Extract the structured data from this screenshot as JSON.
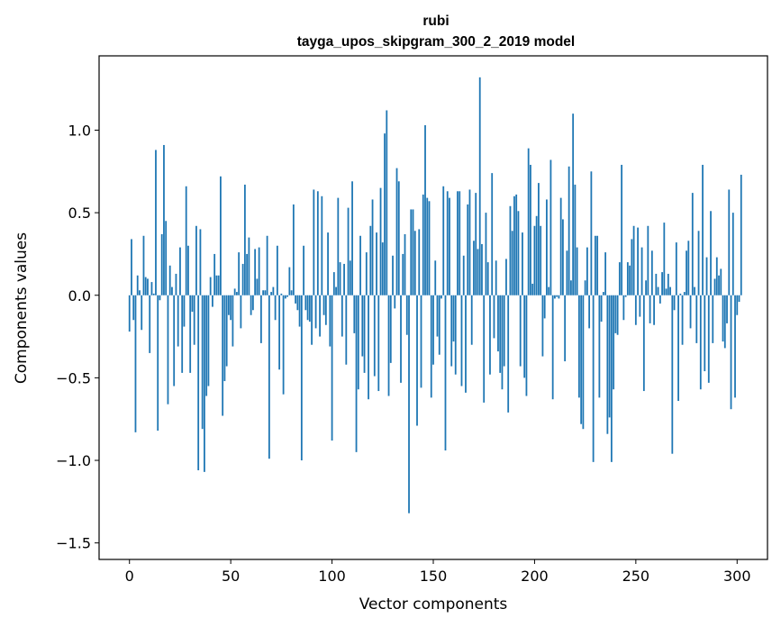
{
  "chart_data": {
    "type": "bar",
    "title_line1": "rubi",
    "title_line2": "tayga_upos_skipgram_300_2_2019 model",
    "xlabel": "Vector components",
    "ylabel": "Components values",
    "xlim": [
      -15,
      315
    ],
    "ylim": [
      -1.6,
      1.45
    ],
    "x_ticks": [
      0,
      50,
      100,
      150,
      200,
      250,
      300
    ],
    "x_tick_labels": [
      "0",
      "50",
      "100",
      "150",
      "200",
      "250",
      "300"
    ],
    "y_ticks": [
      -1.5,
      -1.0,
      -0.5,
      0.0,
      0.5,
      1.0
    ],
    "y_tick_labels": [
      "−1.5",
      "−1.0",
      "−0.5",
      "0.0",
      "0.5",
      "1.0"
    ],
    "bar_color": "#1f77b4",
    "values": [
      -0.22,
      0.34,
      -0.15,
      -0.83,
      0.12,
      0.03,
      -0.21,
      0.36,
      0.11,
      0.1,
      -0.35,
      0.08,
      0.01,
      0.88,
      -0.82,
      -0.03,
      0.37,
      0.91,
      0.45,
      -0.66,
      0.18,
      0.05,
      -0.55,
      0.13,
      -0.31,
      0.29,
      -0.47,
      -0.19,
      0.66,
      0.3,
      -0.47,
      -0.1,
      -0.3,
      0.42,
      -1.06,
      0.4,
      -0.81,
      -1.07,
      -0.61,
      -0.55,
      0.11,
      -0.07,
      0.25,
      0.12,
      0.12,
      0.72,
      -0.73,
      -0.52,
      -0.43,
      -0.12,
      -0.15,
      -0.31,
      0.04,
      0.02,
      0.26,
      -0.2,
      0.19,
      0.67,
      0.25,
      0.35,
      -0.12,
      -0.09,
      0.28,
      0.1,
      0.29,
      -0.29,
      0.03,
      0.03,
      0.36,
      -0.99,
      0.02,
      0.05,
      -0.15,
      0.3,
      -0.45,
      0.01,
      -0.6,
      -0.02,
      -0.01,
      0.17,
      0.03,
      0.55,
      -0.05,
      -0.09,
      -0.19,
      -1.0,
      0.3,
      -0.09,
      -0.15,
      -0.16,
      -0.3,
      0.64,
      -0.2,
      0.63,
      -0.25,
      0.6,
      -0.12,
      -0.18,
      0.38,
      -0.31,
      -0.88,
      0.14,
      0.05,
      0.59,
      0.2,
      -0.25,
      0.19,
      -0.42,
      0.53,
      0.21,
      0.69,
      -0.23,
      -0.95,
      -0.57,
      0.36,
      -0.37,
      -0.47,
      0.26,
      -0.63,
      0.42,
      0.58,
      -0.49,
      0.38,
      -0.58,
      0.65,
      0.32,
      0.98,
      1.12,
      -0.61,
      -0.41,
      0.24,
      -0.08,
      0.77,
      0.69,
      -0.53,
      0.25,
      0.37,
      -0.24,
      -1.32,
      0.52,
      0.52,
      0.39,
      -0.79,
      0.4,
      -0.56,
      0.61,
      1.03,
      0.59,
      0.57,
      -0.62,
      -0.42,
      0.21,
      -0.25,
      -0.36,
      -0.02,
      0.66,
      -0.94,
      0.63,
      0.59,
      -0.43,
      -0.28,
      -0.48,
      0.63,
      0.63,
      -0.55,
      0.24,
      -0.59,
      0.55,
      0.64,
      -0.3,
      0.33,
      0.62,
      0.28,
      1.32,
      0.31,
      -0.65,
      0.5,
      0.2,
      -0.48,
      0.74,
      -0.26,
      0.21,
      -0.34,
      -0.47,
      -0.57,
      -0.43,
      0.22,
      -0.71,
      0.54,
      0.39,
      0.6,
      0.61,
      0.51,
      -0.43,
      0.38,
      -0.5,
      -0.61,
      0.89,
      0.79,
      0.07,
      0.42,
      0.48,
      0.68,
      0.42,
      -0.37,
      -0.14,
      0.58,
      0.05,
      0.82,
      -0.63,
      -0.02,
      -0.01,
      -0.02,
      0.59,
      0.46,
      -0.4,
      0.27,
      0.78,
      0.09,
      1.1,
      0.67,
      0.29,
      -0.62,
      -0.78,
      -0.81,
      0.09,
      0.29,
      -0.2,
      0.75,
      -1.01,
      0.36,
      0.36,
      -0.62,
      -0.16,
      0.02,
      0.26,
      -0.84,
      -0.74,
      -1.01,
      -0.57,
      -0.23,
      -0.24,
      0.2,
      0.79,
      -0.15,
      -0.01,
      0.2,
      0.18,
      0.34,
      0.42,
      -0.18,
      0.41,
      -0.13,
      0.29,
      -0.58,
      0.09,
      0.42,
      -0.17,
      0.27,
      -0.18,
      0.13,
      0.05,
      -0.05,
      0.14,
      0.44,
      0.04,
      0.13,
      0.05,
      -0.96,
      -0.09,
      0.32,
      -0.64,
      0.01,
      -0.3,
      0.02,
      0.27,
      0.33,
      -0.2,
      0.62,
      0.05,
      -0.29,
      0.39,
      -0.57,
      0.79,
      -0.46,
      0.23,
      -0.53,
      0.51,
      -0.29,
      0.1,
      0.23,
      0.12,
      0.16,
      -0.28,
      -0.32,
      -0.17,
      0.64,
      -0.69,
      0.5,
      -0.62,
      -0.12,
      -0.04,
      0.73
    ]
  }
}
